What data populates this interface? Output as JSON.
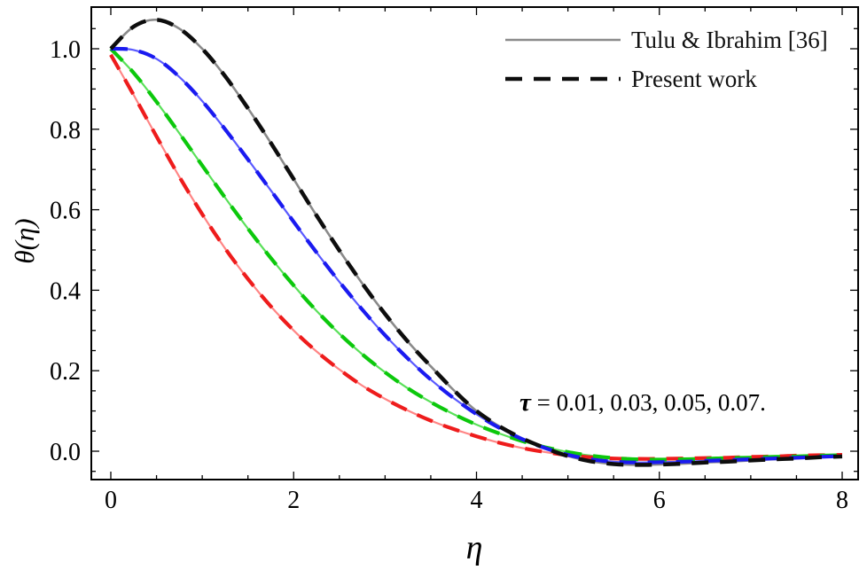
{
  "figure": {
    "xlabel": "η",
    "ylabel": "θ(η)",
    "annotation_symbol": "τ",
    "annotation_rest": " = 0.01, 0.03, 0.05, 0.07."
  },
  "chart_data": {
    "type": "line",
    "title": "",
    "xlabel": "η",
    "ylabel": "θ(η)",
    "xlim": [
      -0.21,
      8.18
    ],
    "ylim": [
      -0.07,
      1.1
    ],
    "grid": false,
    "legend_position": "top-right-inside",
    "x_ticks": [
      {
        "v": 0,
        "label": "0"
      },
      {
        "v": 2,
        "label": "2"
      },
      {
        "v": 4,
        "label": "4"
      },
      {
        "v": 6,
        "label": "6"
      },
      {
        "v": 8,
        "label": "8"
      }
    ],
    "y_ticks": [
      {
        "v": 0.0,
        "label": "0.0"
      },
      {
        "v": 0.2,
        "label": "0.2"
      },
      {
        "v": 0.4,
        "label": "0.4"
      },
      {
        "v": 0.6,
        "label": "0.6"
      },
      {
        "v": 0.8,
        "label": "0.8"
      },
      {
        "v": 1.0,
        "label": "1.0"
      }
    ],
    "x_minor_step": 0.5,
    "y_minor_step": 0.05,
    "legend": [
      {
        "label": "Tulu & Ibrahim [36]",
        "style": "solid",
        "color": "#8a8a8a",
        "width": 2.6
      },
      {
        "label": "Present work",
        "style": "dashed",
        "color": "#0d0d0d",
        "width": 4.5
      }
    ],
    "annotation": "τ = 0.01, 0.03, 0.05, 0.07.",
    "tau_values": [
      0.01,
      0.03,
      0.05,
      0.07
    ],
    "dash_pattern": "19 13",
    "x": [
      0,
      0.25,
      0.5,
      0.75,
      1,
      1.25,
      1.5,
      1.75,
      2,
      2.25,
      2.5,
      2.75,
      3,
      3.25,
      3.5,
      3.75,
      4,
      4.25,
      4.5,
      4.75,
      5,
      5.25,
      5.5,
      5.75,
      6,
      6.25,
      6.5,
      6.75,
      7,
      7.25,
      7.5,
      7.75,
      8
    ],
    "pairs": [
      {
        "name": "pair-gray-black",
        "solid_color": "#8a8a8a",
        "dashed_color": "#0d0d0d",
        "solid_width": 2.6,
        "dashed_width": 4.5,
        "values": [
          1.0,
          1.055,
          1.072,
          1.05,
          1.0,
          0.932,
          0.852,
          0.766,
          0.676,
          0.586,
          0.499,
          0.417,
          0.341,
          0.272,
          0.211,
          0.152,
          0.1,
          0.062,
          0.032,
          0.008,
          -0.012,
          -0.025,
          -0.032,
          -0.034,
          -0.033,
          -0.031,
          -0.028,
          -0.026,
          -0.023,
          -0.02,
          -0.018,
          -0.015,
          -0.013
        ]
      },
      {
        "name": "pair-blue",
        "solid_color": "#5a5aff",
        "dashed_color": "#1a1af0",
        "solid_width": 2.2,
        "dashed_width": 4.2,
        "values": [
          1.0,
          0.997,
          0.975,
          0.93,
          0.87,
          0.8,
          0.725,
          0.648,
          0.57,
          0.494,
          0.421,
          0.352,
          0.288,
          0.23,
          0.178,
          0.132,
          0.092,
          0.058,
          0.03,
          0.008,
          -0.009,
          -0.02,
          -0.026,
          -0.028,
          -0.027,
          -0.026,
          -0.024,
          -0.022,
          -0.02,
          -0.018,
          -0.016,
          -0.014,
          -0.012
        ]
      },
      {
        "name": "pair-green",
        "solid_color": "#5ae05a",
        "dashed_color": "#0cc80c",
        "solid_width": 2.2,
        "dashed_width": 4.2,
        "values": [
          1.0,
          0.94,
          0.868,
          0.79,
          0.71,
          0.63,
          0.553,
          0.48,
          0.412,
          0.349,
          0.292,
          0.241,
          0.196,
          0.156,
          0.122,
          0.092,
          0.066,
          0.044,
          0.025,
          0.01,
          -0.002,
          -0.011,
          -0.017,
          -0.02,
          -0.021,
          -0.02,
          -0.019,
          -0.017,
          -0.016,
          -0.014,
          -0.013,
          -0.011,
          -0.01
        ]
      },
      {
        "name": "pair-red",
        "solid_color": "#ff8585",
        "dashed_color": "#ee1c1c",
        "solid_width": 2.2,
        "dashed_width": 4.2,
        "values": [
          0.985,
          0.885,
          0.782,
          0.682,
          0.589,
          0.504,
          0.428,
          0.36,
          0.3,
          0.248,
          0.203,
          0.163,
          0.13,
          0.101,
          0.076,
          0.055,
          0.037,
          0.021,
          0.008,
          -0.002,
          -0.01,
          -0.015,
          -0.018,
          -0.019,
          -0.019,
          -0.018,
          -0.017,
          -0.016,
          -0.014,
          -0.013,
          -0.011,
          -0.01,
          -0.009
        ]
      }
    ]
  }
}
